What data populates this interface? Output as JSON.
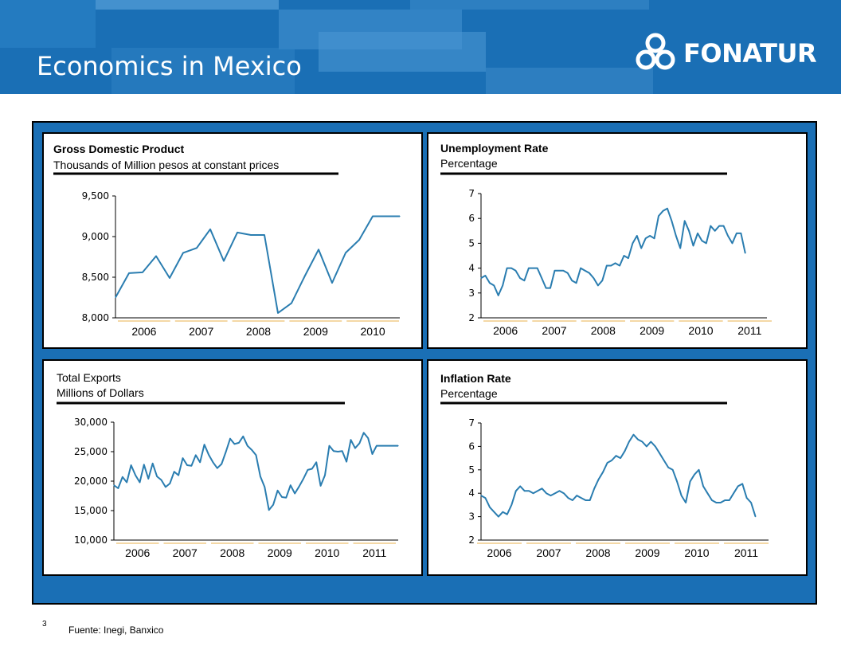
{
  "slide": {
    "title": "Economics in Mexico",
    "logo_text": "FONATUR",
    "page_number": "3",
    "source": "Fuente: Inegi, Banxico"
  },
  "colors": {
    "header_blue": "#1a6fb5",
    "line": "#2a7db0",
    "period_marks": "#e9b24d"
  },
  "chart_data": [
    {
      "type": "line",
      "title": "Gross Domestic Product",
      "subtitle": "Thousands of Million pesos at constant prices",
      "title_bold": true,
      "ylim": [
        8000,
        9500
      ],
      "yticks": [
        8000,
        8500,
        9000,
        9500
      ],
      "ytick_labels": [
        "8,000",
        "8,500",
        "9,000",
        "9,500"
      ],
      "xlim": [
        2005.75,
        2011.0
      ],
      "year_labels": [
        "2006",
        "2007",
        "2008",
        "2009",
        "2010"
      ],
      "series": [
        {
          "x": [
            2005.75,
            2006.0,
            2006.25,
            2006.5,
            2006.75,
            2007.0,
            2007.25,
            2007.5,
            2007.75,
            2008.0,
            2008.25,
            2008.5,
            2008.75,
            2009.0,
            2009.25,
            2009.5,
            2009.75,
            2010.0,
            2010.25,
            2010.5,
            2010.75,
            2011.0
          ],
          "values": [
            8250,
            8550,
            8560,
            8760,
            8490,
            8800,
            8860,
            9090,
            8700,
            9050,
            9020,
            9020,
            8060,
            8180,
            8520,
            8840,
            8430,
            8800,
            8960,
            9250,
            9250,
            9250
          ]
        }
      ]
    },
    {
      "type": "line",
      "title": "Unemployment Rate",
      "subtitle": "Percentage",
      "title_bold": true,
      "ylim": [
        2,
        7
      ],
      "yticks": [
        2,
        3,
        4,
        5,
        6,
        7
      ],
      "ytick_labels": [
        "2",
        "3",
        "4",
        "5",
        "6",
        "7"
      ],
      "xlim": [
        2006.0,
        2011.5
      ],
      "year_labels": [
        "2006",
        "2007",
        "2008",
        "2009",
        "2010",
        "2011"
      ],
      "series": [
        {
          "x": [
            2006.0,
            2006.083,
            2006.167,
            2006.25,
            2006.333,
            2006.417,
            2006.5,
            2006.583,
            2006.667,
            2006.75,
            2006.833,
            2006.917,
            2007.0,
            2007.083,
            2007.167,
            2007.25,
            2007.333,
            2007.417,
            2007.5,
            2007.583,
            2007.667,
            2007.75,
            2007.833,
            2007.917,
            2008.0,
            2008.083,
            2008.167,
            2008.25,
            2008.333,
            2008.417,
            2008.5,
            2008.583,
            2008.667,
            2008.75,
            2008.833,
            2008.917,
            2009.0,
            2009.083,
            2009.167,
            2009.25,
            2009.333,
            2009.417,
            2009.5,
            2009.583,
            2009.667,
            2009.75,
            2009.833,
            2009.917,
            2010.0,
            2010.083,
            2010.167,
            2010.25,
            2010.333,
            2010.417,
            2010.5,
            2010.583,
            2010.667,
            2010.75,
            2010.833,
            2010.917,
            2011.0,
            2011.083
          ],
          "values": [
            3.6,
            3.7,
            3.4,
            3.3,
            2.9,
            3.3,
            4.0,
            4.0,
            3.9,
            3.6,
            3.5,
            4.0,
            4.0,
            4.0,
            3.6,
            3.2,
            3.2,
            3.9,
            3.9,
            3.9,
            3.8,
            3.5,
            3.4,
            4.0,
            3.9,
            3.8,
            3.6,
            3.3,
            3.5,
            4.1,
            4.1,
            4.2,
            4.1,
            4.5,
            4.4,
            5.0,
            5.3,
            4.8,
            5.2,
            5.3,
            5.2,
            6.1,
            6.3,
            6.4,
            5.9,
            5.3,
            4.8,
            5.9,
            5.5,
            4.9,
            5.4,
            5.1,
            5.0,
            5.7,
            5.5,
            5.7,
            5.7,
            5.3,
            5.0,
            5.4,
            5.4,
            4.6
          ]
        }
      ]
    },
    {
      "type": "line",
      "title": "Total Exports",
      "subtitle": "Millions of Dollars",
      "title_bold": false,
      "ylim": [
        10000,
        30000
      ],
      "yticks": [
        10000,
        15000,
        20000,
        25000,
        30000
      ],
      "ytick_labels": [
        "10,000",
        "15,000",
        "20,000",
        "25,000",
        "30,000"
      ],
      "xlim": [
        2006.0,
        2011.5
      ],
      "year_labels": [
        "2006",
        "2007",
        "2008",
        "2009",
        "2010",
        "2011"
      ],
      "series": [
        {
          "x": [
            2006.0,
            2006.083,
            2006.167,
            2006.25,
            2006.333,
            2006.417,
            2006.5,
            2006.583,
            2006.667,
            2006.75,
            2006.833,
            2006.917,
            2007.0,
            2007.083,
            2007.167,
            2007.25,
            2007.333,
            2007.417,
            2007.5,
            2007.583,
            2007.667,
            2007.75,
            2007.833,
            2007.917,
            2008.0,
            2008.083,
            2008.167,
            2008.25,
            2008.333,
            2008.417,
            2008.5,
            2008.583,
            2008.667,
            2008.75,
            2008.833,
            2008.917,
            2009.0,
            2009.083,
            2009.167,
            2009.25,
            2009.333,
            2009.417,
            2009.5,
            2009.583,
            2009.667,
            2009.75,
            2009.833,
            2009.917,
            2010.0,
            2010.083,
            2010.167,
            2010.25,
            2010.333,
            2010.417,
            2010.5,
            2010.583,
            2010.667,
            2010.75,
            2010.833,
            2010.917,
            2011.0,
            2011.083,
            2011.167,
            2011.25,
            2011.333,
            2011.417,
            2011.5
          ],
          "values": [
            19300,
            18800,
            20700,
            19800,
            22700,
            21000,
            19800,
            22800,
            20400,
            23000,
            20800,
            20200,
            19000,
            19600,
            21600,
            21000,
            23900,
            22700,
            22600,
            24400,
            23200,
            26200,
            24500,
            23200,
            22200,
            22900,
            25000,
            27200,
            26300,
            26500,
            27600,
            26000,
            25300,
            24400,
            20800,
            19000,
            15100,
            16000,
            18400,
            17300,
            17200,
            19300,
            17900,
            19100,
            20400,
            21900,
            22100,
            23200,
            19200,
            21000,
            26000,
            25100,
            25000,
            25100,
            23300,
            27000,
            25600,
            26400,
            28200,
            27300,
            24600,
            26000,
            26000,
            26000,
            26000,
            26000,
            26000
          ]
        }
      ]
    },
    {
      "type": "line",
      "title": "Inflation Rate",
      "subtitle": "Percentage",
      "title_bold": true,
      "ylim": [
        2,
        7
      ],
      "yticks": [
        2,
        3,
        4,
        5,
        6,
        7
      ],
      "ytick_labels": [
        "2",
        "3",
        "4",
        "5",
        "6",
        "7"
      ],
      "xlim": [
        2006.0,
        2011.5
      ],
      "year_labels": [
        "2006",
        "2007",
        "2008",
        "2009",
        "2010",
        "2011"
      ],
      "series": [
        {
          "x": [
            2006.0,
            2006.083,
            2006.167,
            2006.25,
            2006.333,
            2006.417,
            2006.5,
            2006.583,
            2006.667,
            2006.75,
            2006.833,
            2006.917,
            2007.0,
            2007.083,
            2007.167,
            2007.25,
            2007.333,
            2007.417,
            2007.5,
            2007.583,
            2007.667,
            2007.75,
            2007.833,
            2007.917,
            2008.0,
            2008.083,
            2008.167,
            2008.25,
            2008.333,
            2008.417,
            2008.5,
            2008.583,
            2008.667,
            2008.75,
            2008.833,
            2008.917,
            2009.0,
            2009.083,
            2009.167,
            2009.25,
            2009.333,
            2009.417,
            2009.5,
            2009.583,
            2009.667,
            2009.75,
            2009.833,
            2009.917,
            2010.0,
            2010.083,
            2010.167,
            2010.25,
            2010.333,
            2010.417,
            2010.5,
            2010.583,
            2010.667,
            2010.75,
            2010.833,
            2010.917,
            2011.0,
            2011.083,
            2011.167,
            2011.25
          ],
          "values": [
            3.9,
            3.8,
            3.4,
            3.2,
            3.0,
            3.2,
            3.1,
            3.5,
            4.1,
            4.3,
            4.1,
            4.1,
            4.0,
            4.1,
            4.2,
            4.0,
            3.9,
            4.0,
            4.1,
            4.0,
            3.8,
            3.7,
            3.9,
            3.8,
            3.7,
            3.7,
            4.2,
            4.6,
            4.9,
            5.3,
            5.4,
            5.6,
            5.5,
            5.8,
            6.2,
            6.5,
            6.3,
            6.2,
            6.0,
            6.2,
            6.0,
            5.7,
            5.4,
            5.1,
            5.0,
            4.5,
            3.9,
            3.6,
            4.5,
            4.8,
            5.0,
            4.3,
            4.0,
            3.7,
            3.6,
            3.6,
            3.7,
            3.7,
            4.0,
            4.3,
            4.4,
            3.8,
            3.6,
            3.0
          ]
        }
      ]
    }
  ]
}
